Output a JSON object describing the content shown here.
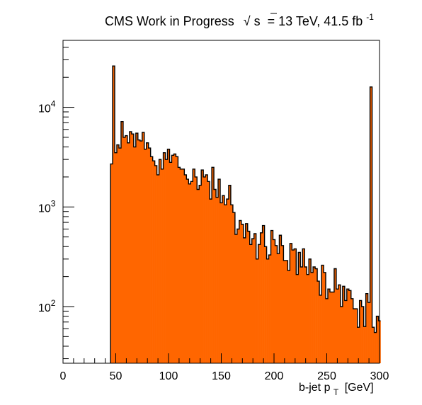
{
  "header": {
    "title_prefix": "CMS Work in Progress",
    "sqrt_symbol": "√",
    "sqrt_arg": "s",
    "title_energy": "= 13 TeV, 41.5 fb",
    "title_exponent": "-1"
  },
  "chart_data": {
    "type": "bar",
    "title": "CMS Work in Progress √s = 13 TeV, 41.5 fb-1",
    "xlabel": "b-jet p_T [GeV]",
    "xlabel_parts": {
      "main": "b-jet p",
      "sub": "T",
      "unit": "[GeV]"
    },
    "ylabel": "",
    "xlim": [
      0,
      300
    ],
    "ylim": [
      27,
      47000
    ],
    "y_scale": "log",
    "grid": false,
    "bar_color": "#ff6600",
    "edge_color": "#000000",
    "x_ticks": [
      0,
      50,
      100,
      150,
      200,
      250,
      300
    ],
    "y_ticks": [
      {
        "value": 100,
        "base": "10",
        "exp": "2"
      },
      {
        "value": 1000,
        "base": "10",
        "exp": "3"
      },
      {
        "value": 10000,
        "base": "10",
        "exp": "4"
      }
    ],
    "bin_edge_start": 45,
    "bin_width": 2,
    "values": [
      2700,
      26000,
      3500,
      4200,
      3900,
      7200,
      5000,
      5200,
      4400,
      5700,
      5400,
      4000,
      5500,
      4700,
      4600,
      5600,
      3800,
      4400,
      3900,
      3200,
      2900,
      2600,
      2100,
      3000,
      2400,
      3500,
      3000,
      3800,
      2800,
      3300,
      3400,
      3200,
      2500,
      2400,
      2400,
      2100,
      1900,
      1700,
      1800,
      2400,
      2000,
      1500,
      1650,
      2350,
      2000,
      2100,
      1800,
      1200,
      2500,
      1500,
      1250,
      1900,
      1100,
      1300,
      1050,
      1200,
      1650,
      1050,
      880,
      530,
      600,
      730,
      670,
      490,
      680,
      570,
      420,
      480,
      540,
      300,
      420,
      550,
      650,
      400,
      300,
      330,
      580,
      470,
      410,
      340,
      520,
      410,
      290,
      290,
      230,
      430,
      370,
      380,
      210,
      350,
      250,
      380,
      250,
      210,
      300,
      220,
      250,
      240,
      180,
      130,
      260,
      220,
      120,
      150,
      140,
      140,
      240,
      150,
      165,
      100,
      160,
      115,
      150,
      145,
      120,
      95,
      95,
      62,
      115,
      100,
      63,
      135,
      110,
      16000,
      62,
      55,
      80,
      72
    ]
  }
}
